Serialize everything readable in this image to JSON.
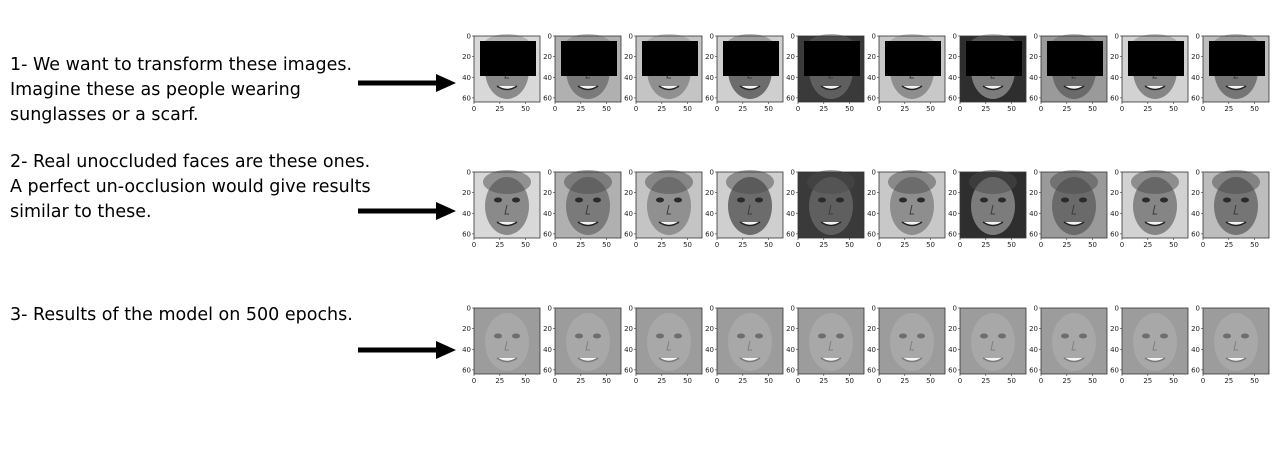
{
  "steps": [
    {
      "lines": [
        "1- We want to transform these images.",
        "Imagine these as people wearing",
        "sunglasses or a scarf."
      ],
      "kind": "occluded"
    },
    {
      "lines": [
        "2- Real unoccluded faces are these ones.",
        "A perfect un-occlusion would give results",
        "similar to these."
      ],
      "kind": "real"
    },
    {
      "lines": [
        "3- Results of the model on 500 epochs."
      ],
      "kind": "result"
    }
  ],
  "axis": {
    "x_ticks": [
      "0",
      "25",
      "50"
    ],
    "y_ticks": [
      "0",
      "20",
      "40",
      "60"
    ]
  },
  "colors": {
    "arrow": "#000000",
    "mask": "#000000",
    "frame": "#333333"
  }
}
